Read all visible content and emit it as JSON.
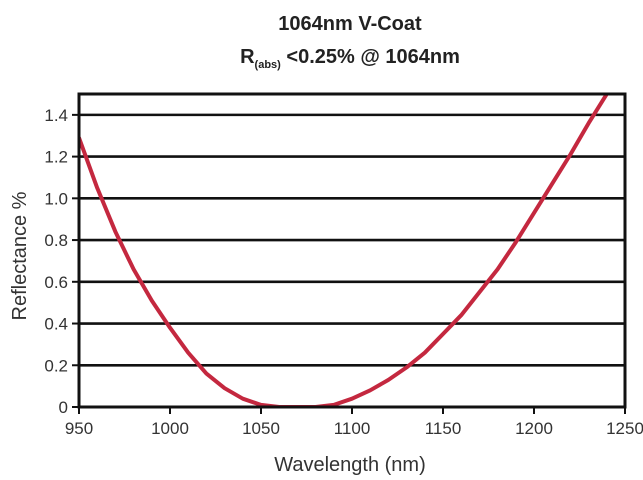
{
  "chart_data": {
    "type": "line",
    "title_line1": "1064nm V-Coat",
    "title_line2": {
      "prefix": "R",
      "subscript": "(abs)",
      "rest": " <0.25% @ 1064nm"
    },
    "xlabel": "Wavelength (nm)",
    "ylabel": "Reflectance %",
    "xlim": [
      950,
      1250
    ],
    "ylim": [
      0,
      1.5
    ],
    "x_ticks": [
      950,
      1000,
      1050,
      1100,
      1150,
      1200,
      1250
    ],
    "x_tick_labels": [
      "950",
      "1000",
      "1050",
      "1100",
      "1150",
      "1200",
      "1250"
    ],
    "y_ticks": [
      0,
      0.2,
      0.4,
      0.6,
      0.8,
      1.0,
      1.2,
      1.4
    ],
    "y_tick_labels": [
      "0",
      "0.2",
      "0.4",
      "0.6",
      "0.8",
      "1.0",
      "1.2",
      "1.4"
    ],
    "grid": "horizontal",
    "line_color": "#c4283f",
    "series": [
      {
        "x": [
          950,
          960,
          970,
          980,
          990,
          1000,
          1010,
          1020,
          1030,
          1040,
          1050,
          1060,
          1070,
          1080,
          1090,
          1100,
          1110,
          1120,
          1130,
          1140,
          1150,
          1160,
          1170,
          1180,
          1190,
          1200,
          1210,
          1220,
          1230,
          1240,
          1250
        ],
        "y": [
          1.29,
          1.05,
          0.84,
          0.66,
          0.51,
          0.38,
          0.26,
          0.16,
          0.09,
          0.04,
          0.01,
          0.0,
          0.0,
          0.0,
          0.01,
          0.04,
          0.08,
          0.13,
          0.19,
          0.26,
          0.35,
          0.44,
          0.55,
          0.66,
          0.79,
          0.93,
          1.07,
          1.21,
          1.36,
          1.5,
          1.66
        ]
      }
    ]
  }
}
